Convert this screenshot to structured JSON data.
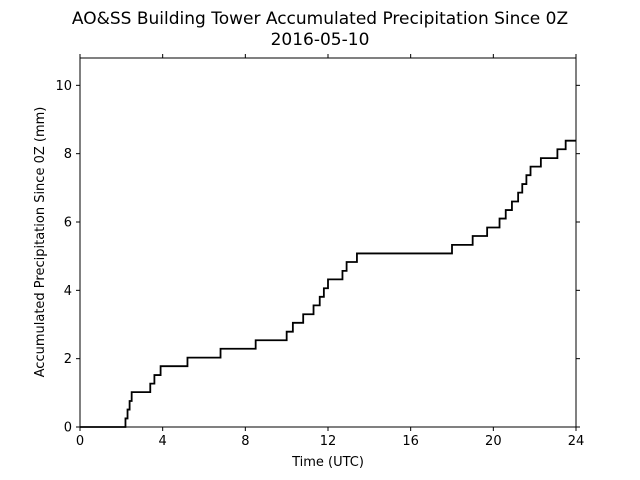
{
  "chart_data": {
    "type": "line",
    "title": "AO&SS Building Tower Accumulated Precipitation Since 0Z",
    "subtitle": "2016-05-10",
    "xlabel": "Time (UTC)",
    "ylabel": "Accumulated Precipitation Since 0Z (mm)",
    "xlim": [
      0,
      24
    ],
    "ylim": [
      0,
      10.8
    ],
    "xticks": [
      0,
      4,
      8,
      12,
      16,
      20,
      24
    ],
    "xtick_labels": [
      "0",
      "4",
      "8",
      "12",
      "16",
      "20",
      "24"
    ],
    "yticks": [
      0,
      2,
      4,
      6,
      8,
      10
    ],
    "ytick_labels": [
      "0",
      "2",
      "4",
      "6",
      "8",
      "10"
    ],
    "grid": false,
    "line_style": "step",
    "color": "#000000",
    "series": [
      {
        "x": [
          0,
          2.2,
          2.3,
          2.4,
          2.5,
          2.6,
          2.7,
          3.4,
          3.6,
          3.9,
          5.2,
          6.8,
          8.5,
          10.0,
          10.3,
          10.8,
          11.3,
          11.6,
          11.8,
          12.0,
          12.7,
          12.9,
          13.4,
          18.0,
          19.0,
          19.7,
          20.3,
          20.6,
          20.9,
          21.2,
          21.4,
          21.6,
          21.8,
          22.3,
          23.1,
          23.5,
          24.0
        ],
        "y": [
          0,
          0.25,
          0.51,
          0.76,
          1.02,
          1.02,
          1.02,
          1.27,
          1.52,
          1.78,
          2.03,
          2.29,
          2.54,
          2.79,
          3.05,
          3.3,
          3.56,
          3.81,
          4.06,
          4.32,
          4.57,
          4.83,
          5.08,
          5.33,
          5.59,
          5.84,
          6.1,
          6.35,
          6.6,
          6.86,
          7.11,
          7.37,
          7.62,
          7.87,
          8.13,
          8.38,
          8.38
        ]
      }
    ]
  }
}
